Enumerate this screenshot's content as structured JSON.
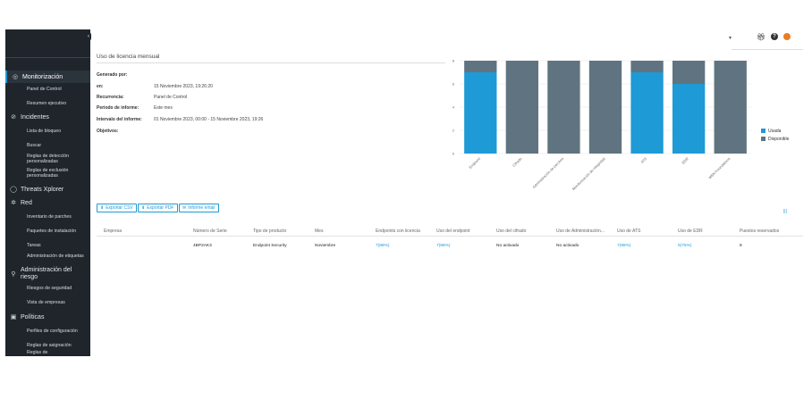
{
  "sidebar": {
    "sections": [
      {
        "label": "Monitorización",
        "icon": "gauge-icon"
      },
      {
        "label": "Incidentes",
        "icon": "target-icon"
      },
      {
        "label": "Threats Xplorer",
        "icon": "shield-icon"
      },
      {
        "label": "Red",
        "icon": "network-icon"
      },
      {
        "label": "Administración del riesgo",
        "icon": "risk-icon"
      },
      {
        "label": "Políticas",
        "icon": "policy-icon"
      }
    ],
    "items": {
      "panel_control": "Panel de Control",
      "resumen_ejecutivo": "Resumen ejecutivo",
      "lista_bloqueo": "Lista de bloqueo",
      "buscar": "Buscar",
      "reglas_deteccion": "Reglas de detección personalizadas",
      "reglas_exclusion": "Reglas de exclusión personalizadas",
      "inventario_parches": "Inventario de parches",
      "paquetes_instalacion": "Paquetes de instalación",
      "tareas": "Tareas",
      "admin_etiquetas": "Administración de etiquetas",
      "riesgos_seguridad": "Riesgos de seguridad",
      "vista_empresas": "Vista de empresas",
      "perfiles_configuracion": "Perfiles de configuración",
      "reglas_asignacion": "Reglas de asignación",
      "reglas_de": "Reglas de"
    }
  },
  "topbar": {
    "dropdown_icon": "chevron-down-icon",
    "gift_icon": "gift-icon",
    "help_icon": "help-icon",
    "notifications_icon": "bell-icon",
    "help_glyph": "?"
  },
  "report": {
    "title": "Uso de licencia mensual",
    "meta": [
      {
        "key": "Generado por:",
        "value": ""
      },
      {
        "key": "en:",
        "value": "15 Noviembre 2023, 19:26:20"
      },
      {
        "key": "Recurrencia:",
        "value": "Panel de Control"
      },
      {
        "key": "Periodo de informe:",
        "value": "Este mes"
      },
      {
        "key": "Intervalo del informe:",
        "value": "01 Noviembre 2023, 00:00 - 15 Noviembre 2023, 19:26"
      },
      {
        "key": "Objetivos:",
        "value": ""
      }
    ]
  },
  "chart_data": {
    "type": "bar",
    "stacked": true,
    "categories": [
      "Endpoint",
      "Cifrado",
      "Administración de parches",
      "Monitorización de integridad",
      "ATS",
      "EDR",
      "MSN Foundations"
    ],
    "series": [
      {
        "name": "Usada",
        "color": "#1e9ad6",
        "values": [
          7,
          0,
          0,
          0,
          7,
          6,
          0
        ]
      },
      {
        "name": "Disponible",
        "color": "#5f7480",
        "values": [
          1,
          8,
          8,
          8,
          1,
          2,
          8
        ]
      }
    ],
    "yticks": [
      "0",
      "2",
      "4",
      "6",
      "8"
    ],
    "ylim": [
      0,
      8
    ],
    "grid": true,
    "legend_position": "right"
  },
  "buttons": {
    "export_csv": "Exportar CSV",
    "export_pdf": "Exportar PDF",
    "email_report": "Informe email",
    "column_toggle": "|||"
  },
  "table": {
    "headers": [
      "Empresa",
      "Número de Serie",
      "Tipo de producto",
      "Mes",
      "Endpoints con licencia",
      "Uso del endpoint",
      "Uso del cifrado",
      "Uso de Administración...",
      "Uso de ATS",
      "Uso de EDR",
      "Puestos reservados"
    ],
    "rows": [
      [
        "",
        "4BP2AK3",
        "Endpoint Security",
        "Noviembre",
        "7(88%)",
        "7(88%)",
        "No activado",
        "No activado",
        "7(88%)",
        "6(75%)",
        "8"
      ]
    ]
  }
}
